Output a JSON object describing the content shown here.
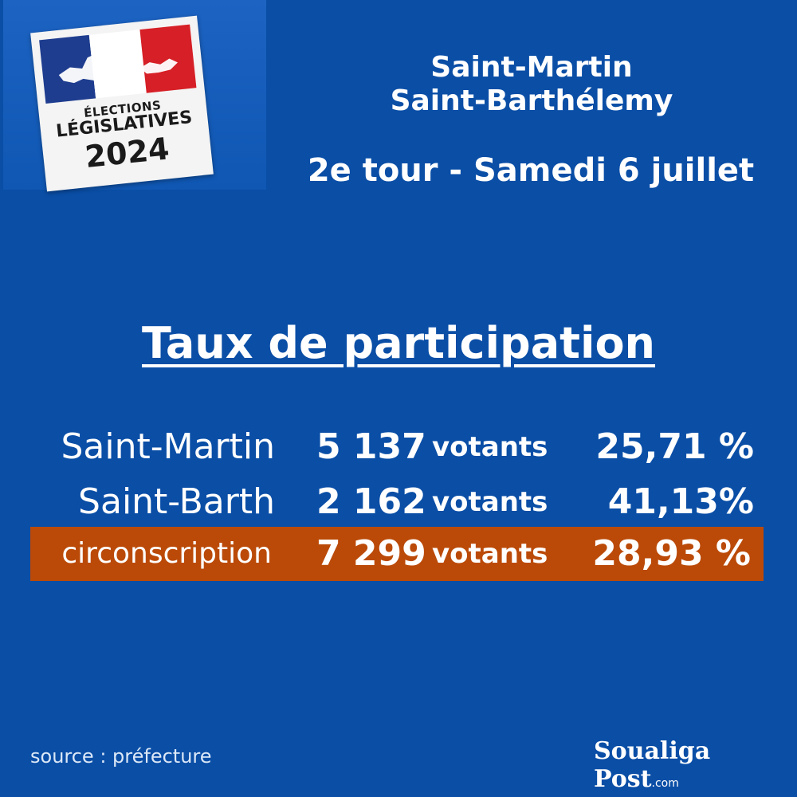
{
  "logo": {
    "line1": "ÉLECTIONS",
    "line2": "LÉGISLATIVES",
    "line3": "2024",
    "colors": {
      "blue": "#1e3d8f",
      "white": "#ffffff",
      "red": "#d61f26"
    }
  },
  "header": {
    "line1": "Saint-Martin",
    "line2": "Saint-Barthélemy",
    "line3": "2e tour - Samedi 6 juillet"
  },
  "section_title": "Taux de participation",
  "rows": [
    {
      "name": "Saint-Martin",
      "count": "5 137",
      "unit": "votants",
      "pct": "25,71 %"
    },
    {
      "name": "Saint-Barth",
      "count": "2 162",
      "unit": "votants",
      "pct": "41,13%"
    },
    {
      "name": "circonscription",
      "count": "7 299",
      "unit": "votants",
      "pct": "28,93 %"
    }
  ],
  "footer": {
    "source": "source : préfecture",
    "brand": "Soualiga Post",
    "brand_suffix": ".com"
  },
  "colors": {
    "background": "#0a4ea6",
    "highlight": "#bb4a08",
    "text": "#ffffff"
  }
}
